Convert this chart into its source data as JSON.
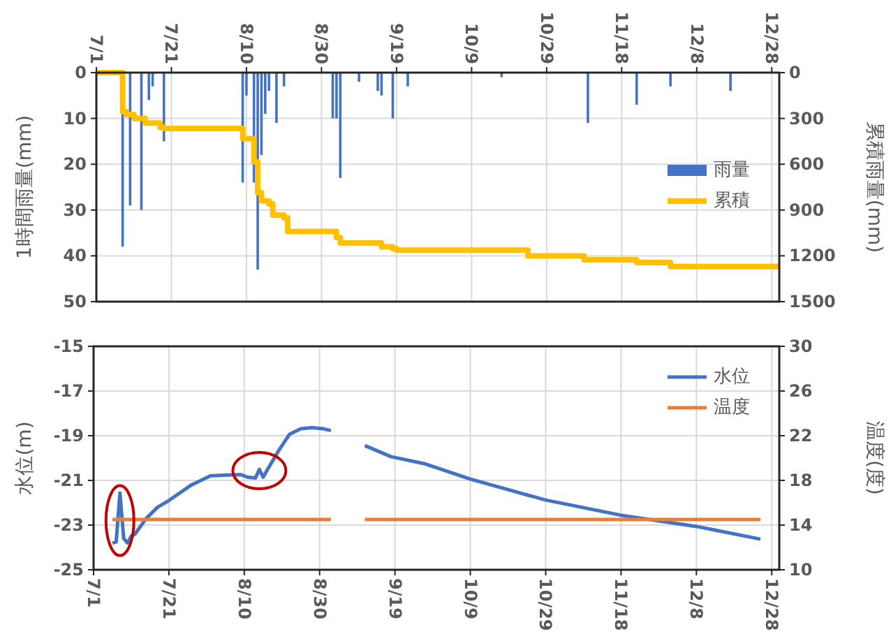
{
  "chart_data": [
    {
      "type": "bar",
      "ylabel": "1時間雨量(mm)",
      "y2label": "累積雨量(mm)",
      "xlim": [
        "--07-01",
        "--12-30"
      ],
      "xticks": [
        {
          "value": "--07-01",
          "label": "7/1"
        },
        {
          "value": "--07-21",
          "label": "7/21"
        },
        {
          "value": "--08-10",
          "label": "8/10"
        },
        {
          "value": "--08-30",
          "label": "8/30"
        },
        {
          "value": "--09-19",
          "label": "9/19"
        },
        {
          "value": "--10-09",
          "label": "10/9"
        },
        {
          "value": "--10-29",
          "label": "10/29"
        },
        {
          "value": "--11-18",
          "label": "11/18"
        },
        {
          "value": "--12-08",
          "label": "12/8"
        },
        {
          "value": "--12-28",
          "label": "12/28"
        }
      ],
      "ylim": [
        50,
        0
      ],
      "yticks": [
        0,
        10,
        20,
        30,
        40,
        50
      ],
      "y2lim": [
        1500,
        0
      ],
      "y2ticks": [
        0,
        300,
        600,
        900,
        1200,
        1500
      ],
      "grid": true,
      "legend": "right",
      "series": [
        {
          "name": "雨量",
          "color": "#4472c4",
          "x": [
            "--07-08",
            "--07-10",
            "--07-13",
            "--07-15",
            "--07-16",
            "--07-19",
            "--08-09",
            "--08-10",
            "--08-12",
            "--08-13",
            "--08-14",
            "--08-15",
            "--08-16",
            "--08-18",
            "--08-20",
            "--09-02",
            "--09-03",
            "--09-04",
            "--09-09",
            "--09-14",
            "--09-15",
            "--09-18",
            "--09-22",
            "--10-17",
            "--11-09",
            "--11-22",
            "--12-01",
            "--12-17"
          ],
          "values": [
            38,
            29,
            30,
            6,
            3,
            15,
            24,
            5,
            24,
            43,
            18,
            9,
            4,
            11,
            3,
            10,
            10,
            23,
            2,
            4,
            5,
            10,
            3,
            1,
            11,
            7,
            3,
            4
          ]
        },
        {
          "name": "累積",
          "type": "step",
          "axis": "y2",
          "color": "#ffc000",
          "x": [
            "--07-01",
            "--07-08",
            "--07-09",
            "--07-11",
            "--07-14",
            "--07-18",
            "--07-19",
            "--08-09",
            "--08-12",
            "--08-13",
            "--08-14",
            "--08-16",
            "--08-17",
            "--08-20",
            "--08-21",
            "--09-03",
            "--09-04",
            "--09-15",
            "--09-18",
            "--09-19",
            "--10-24",
            "--11-08",
            "--11-22",
            "--12-01",
            "--12-16",
            "--12-30"
          ],
          "values": [
            0,
            256,
            274,
            300,
            330,
            358,
            366,
            432,
            585,
            787,
            840,
            860,
            933,
            951,
            1040,
            1080,
            1116,
            1141,
            1152,
            1163,
            1200,
            1226,
            1244,
            1270,
            1270,
            1270
          ]
        }
      ]
    },
    {
      "type": "line",
      "ylabel": "水位(m)",
      "y2label": "温度(度)",
      "xlim": [
        "--07-01",
        "--12-30"
      ],
      "xticks": [
        {
          "value": "--07-01",
          "label": "7/1"
        },
        {
          "value": "--07-21",
          "label": "7/21"
        },
        {
          "value": "--08-10",
          "label": "8/10"
        },
        {
          "value": "--08-30",
          "label": "8/30"
        },
        {
          "value": "--09-19",
          "label": "9/19"
        },
        {
          "value": "--10-09",
          "label": "10/9"
        },
        {
          "value": "--10-29",
          "label": "10/29"
        },
        {
          "value": "--11-18",
          "label": "11/18"
        },
        {
          "value": "--12-08",
          "label": "12/8"
        },
        {
          "value": "--12-28",
          "label": "12/28"
        }
      ],
      "ylim": [
        -25,
        -15
      ],
      "yticks": [
        -25,
        -23,
        -21,
        -19,
        -17,
        -15
      ],
      "y2lim": [
        10,
        30
      ],
      "y2ticks": [
        10,
        14,
        18,
        22,
        26,
        30
      ],
      "grid": true,
      "legend": "top right",
      "series": [
        {
          "name": "水位",
          "color": "#4472c4",
          "x": [
            "--07-06",
            "--07-07",
            "--07-08",
            "--07-09",
            "--07-10",
            "--07-11",
            "--07-12",
            "--07-15",
            "--07-18",
            "--07-21",
            "--07-27",
            "--08-01",
            "--08-06",
            "--08-09",
            "--08-11",
            "--08-13",
            "--08-14",
            "--08-15",
            "--08-16",
            "--08-19",
            "--08-22",
            "--08-25",
            "--08-28",
            "--08-31",
            "--09-02",
            "--09-06",
            "--09-11",
            "--09-18",
            "--09-27",
            "--10-09",
            "--10-29",
            "--11-18",
            "--12-08",
            "--12-25"
          ],
          "values": [
            -23.8,
            -23.75,
            -21.56,
            -23.6,
            -23.8,
            -23.5,
            -23.4,
            -22.7,
            -22.2,
            -21.9,
            -21.2,
            -20.8,
            -20.76,
            -20.74,
            -20.86,
            -20.89,
            -20.5,
            -20.86,
            -20.56,
            -19.7,
            -18.94,
            -18.69,
            -18.64,
            -18.69,
            -18.77,
            null,
            -19.44,
            -19.94,
            -20.26,
            -20.94,
            -21.88,
            -22.56,
            -23.06,
            -23.63
          ]
        },
        {
          "name": "温度",
          "axis": "y2",
          "color": "#ed7d31",
          "x": [
            "--07-06",
            "--09-02",
            "--09-06",
            "--09-11",
            "--12-25"
          ],
          "values": [
            14.5,
            14.5,
            null,
            14.5,
            14.5
          ]
        }
      ]
    }
  ]
}
